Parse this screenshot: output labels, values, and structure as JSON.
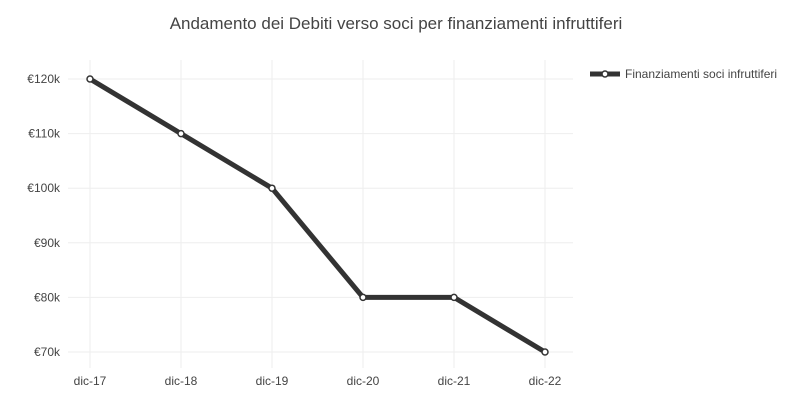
{
  "chart_data": {
    "type": "line",
    "title": "Andamento dei Debiti verso soci per finanziamenti infruttiferi",
    "categories": [
      "dic-17",
      "dic-18",
      "dic-19",
      "dic-20",
      "dic-21",
      "dic-22"
    ],
    "series": [
      {
        "name": "Finanziamenti soci infruttiferi",
        "values": [
          120000,
          110000,
          100000,
          80000,
          80000,
          70000
        ],
        "color": "#333333"
      }
    ],
    "y_ticks": [
      70000,
      80000,
      90000,
      100000,
      110000,
      120000
    ],
    "y_tick_labels": [
      "€70k",
      "€80k",
      "€90k",
      "€100k",
      "€110k",
      "€120k"
    ],
    "ylim": [
      70000,
      120000
    ],
    "xlabel": "",
    "ylabel": "",
    "grid": true,
    "legend_position": "top-right"
  }
}
